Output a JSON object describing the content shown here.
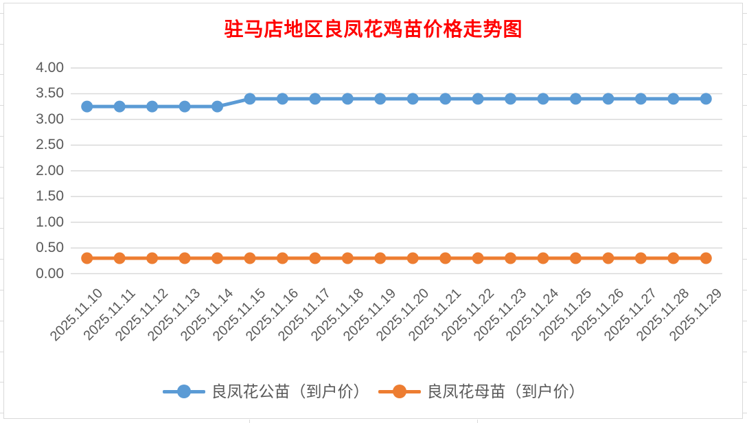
{
  "chart": {
    "title": "驻马店地区良凤花鸡苗价格走势图",
    "title_color": "#FF0000"
  },
  "chart_data": {
    "type": "line",
    "title": "驻马店地区良凤花鸡苗价格走势图",
    "categories": [
      "2025.11.10",
      "2025.11.11",
      "2025.11.12",
      "2025.11.13",
      "2025.11.14",
      "2025.11.15",
      "2025.11.16",
      "2025.11.17",
      "2025.11.18",
      "2025.11.19",
      "2025.11.20",
      "2025.11.21",
      "2025.11.22",
      "2025.11.23",
      "2025.11.24",
      "2025.11.25",
      "2025.11.26",
      "2025.11.27",
      "2025.11.28",
      "2025.11.29"
    ],
    "series": [
      {
        "name": "良凤花公苗（到户价）",
        "color": "#5B9BD5",
        "values": [
          3.25,
          3.25,
          3.25,
          3.25,
          3.25,
          3.4,
          3.4,
          3.4,
          3.4,
          3.4,
          3.4,
          3.4,
          3.4,
          3.4,
          3.4,
          3.4,
          3.4,
          3.4,
          3.4,
          3.4
        ]
      },
      {
        "name": "良凤花母苗（到户价）",
        "color": "#ED7D31",
        "values": [
          0.3,
          0.3,
          0.3,
          0.3,
          0.3,
          0.3,
          0.3,
          0.3,
          0.3,
          0.3,
          0.3,
          0.3,
          0.3,
          0.3,
          0.3,
          0.3,
          0.3,
          0.3,
          0.3,
          0.3
        ]
      }
    ],
    "ylim": [
      0.0,
      4.0
    ],
    "yticks": [
      0,
      0.5,
      1,
      1.5,
      2,
      2.5,
      3,
      3.5,
      4
    ],
    "ytick_labels": [
      "0.00",
      "0.50",
      "1.00",
      "1.50",
      "2.00",
      "2.50",
      "3.00",
      "3.50",
      "4.00"
    ],
    "xlabel": "",
    "ylabel": "",
    "grid": "horizontal",
    "gridline_color": "#D9D9D9",
    "axis_label_color": "#595959",
    "legend_position": "bottom"
  }
}
